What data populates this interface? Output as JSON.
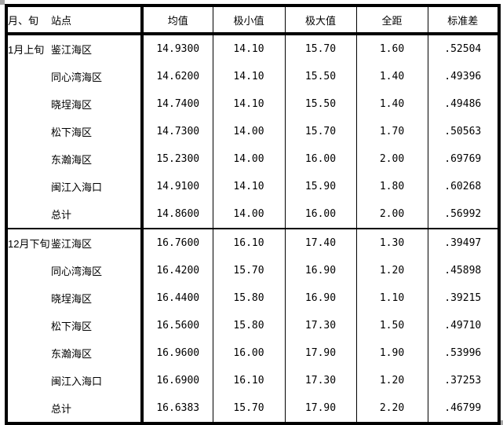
{
  "icons": {
    "selection_handle": "small grey square drag handle"
  },
  "table": {
    "columns": [
      {
        "key": "month",
        "label": "月、旬"
      },
      {
        "key": "station",
        "label": "站点"
      },
      {
        "key": "mean",
        "label": "均值"
      },
      {
        "key": "min",
        "label": "极小值"
      },
      {
        "key": "max",
        "label": "极大值"
      },
      {
        "key": "range",
        "label": "全距"
      },
      {
        "key": "std",
        "label": "标准差"
      }
    ],
    "sections": [
      {
        "month": "1月上旬",
        "rows": [
          {
            "station": "鉴江海区",
            "mean": "14.9300",
            "min": "14.10",
            "max": "15.70",
            "range": "1.60",
            "std": ".52504"
          },
          {
            "station": "同心湾海区",
            "mean": "14.6200",
            "min": "14.10",
            "max": "15.50",
            "range": "1.40",
            "std": ".49396"
          },
          {
            "station": "晓埕海区",
            "mean": "14.7400",
            "min": "14.10",
            "max": "15.50",
            "range": "1.40",
            "std": ".49486"
          },
          {
            "station": "松下海区",
            "mean": "14.7300",
            "min": "14.00",
            "max": "15.70",
            "range": "1.70",
            "std": ".50563"
          },
          {
            "station": "东瀚海区",
            "mean": "15.2300",
            "min": "14.00",
            "max": "16.00",
            "range": "2.00",
            "std": ".69769"
          },
          {
            "station": "闽江入海口",
            "mean": "14.9100",
            "min": "14.10",
            "max": "15.90",
            "range": "1.80",
            "std": ".60268"
          },
          {
            "station": "总计",
            "mean": "14.8600",
            "min": "14.00",
            "max": "16.00",
            "range": "2.00",
            "std": ".56992"
          }
        ]
      },
      {
        "month": "12月下旬",
        "rows": [
          {
            "station": "鉴江海区",
            "mean": "16.7600",
            "min": "16.10",
            "max": "17.40",
            "range": "1.30",
            "std": ".39497"
          },
          {
            "station": "同心湾海区",
            "mean": "16.4200",
            "min": "15.70",
            "max": "16.90",
            "range": "1.20",
            "std": ".45898"
          },
          {
            "station": "晓埕海区",
            "mean": "16.4400",
            "min": "15.80",
            "max": "16.90",
            "range": "1.10",
            "std": ".39215"
          },
          {
            "station": "松下海区",
            "mean": "16.5600",
            "min": "15.80",
            "max": "17.30",
            "range": "1.50",
            "std": ".49710"
          },
          {
            "station": "东瀚海区",
            "mean": "16.9600",
            "min": "16.00",
            "max": "17.90",
            "range": "1.90",
            "std": ".53996"
          },
          {
            "station": "闽江入海口",
            "mean": "16.6900",
            "min": "16.10",
            "max": "17.30",
            "range": "1.20",
            "std": ".37253"
          },
          {
            "station": "总计",
            "mean": "16.6383",
            "min": "15.70",
            "max": "17.90",
            "range": "2.20",
            "std": ".46799"
          }
        ]
      }
    ]
  },
  "chart_data": {
    "type": "table",
    "title": "",
    "columns": [
      "月、旬",
      "站点",
      "均值",
      "极小值",
      "极大值",
      "全距",
      "标准差"
    ],
    "rows": [
      [
        "1月上旬",
        "鉴江海区",
        14.93,
        14.1,
        15.7,
        1.6,
        0.52504
      ],
      [
        "",
        "同心湾海区",
        14.62,
        14.1,
        15.5,
        1.4,
        0.49396
      ],
      [
        "",
        "晓埕海区",
        14.74,
        14.1,
        15.5,
        1.4,
        0.49486
      ],
      [
        "",
        "松下海区",
        14.73,
        14.0,
        15.7,
        1.7,
        0.50563
      ],
      [
        "",
        "东瀚海区",
        15.23,
        14.0,
        16.0,
        2.0,
        0.69769
      ],
      [
        "",
        "闽江入海口",
        14.91,
        14.1,
        15.9,
        1.8,
        0.60268
      ],
      [
        "",
        "总计",
        14.86,
        14.0,
        16.0,
        2.0,
        0.56992
      ],
      [
        "12月下旬",
        "鉴江海区",
        16.76,
        16.1,
        17.4,
        1.3,
        0.39497
      ],
      [
        "",
        "同心湾海区",
        16.42,
        15.7,
        16.9,
        1.2,
        0.45898
      ],
      [
        "",
        "晓埕海区",
        16.44,
        15.8,
        16.9,
        1.1,
        0.39215
      ],
      [
        "",
        "松下海区",
        16.56,
        15.8,
        17.3,
        1.5,
        0.4971
      ],
      [
        "",
        "东瀚海区",
        16.96,
        16.0,
        17.9,
        1.9,
        0.53996
      ],
      [
        "",
        "闽江入海口",
        16.69,
        16.1,
        17.3,
        1.2,
        0.37253
      ],
      [
        "",
        "总计",
        16.6383,
        15.7,
        17.9,
        2.2,
        0.46799
      ]
    ]
  }
}
